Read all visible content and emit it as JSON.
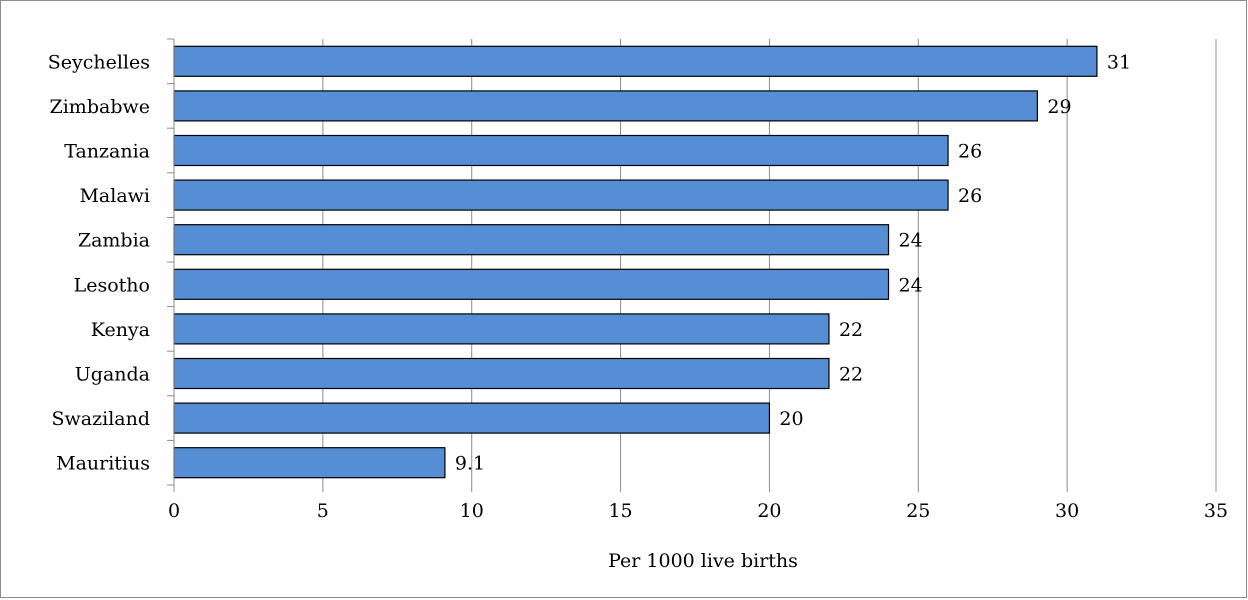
{
  "chart_data": {
    "type": "bar",
    "orientation": "horizontal",
    "categories": [
      "Seychelles",
      "Zimbabwe",
      "Tanzania",
      "Malawi",
      "Zambia",
      "Lesotho",
      "Kenya",
      "Uganda",
      "Swaziland",
      "Mauritius"
    ],
    "values": [
      31,
      29,
      26,
      26,
      24,
      24,
      22,
      22,
      20,
      9.1
    ],
    "data_labels": [
      "31",
      "29",
      "26",
      "26",
      "24",
      "24",
      "22",
      "22",
      "20",
      "9.1"
    ],
    "title": "",
    "xlabel": "Per 1000  live births",
    "ylabel": "",
    "xlim": [
      0,
      35
    ],
    "xticks": [
      0,
      5,
      10,
      15,
      20,
      25,
      30,
      35
    ],
    "grid": "vertical",
    "legend": "none",
    "bar_color": "#558ED5",
    "bar_edge_color": "#000000",
    "grid_color": "#8C8C8C"
  }
}
